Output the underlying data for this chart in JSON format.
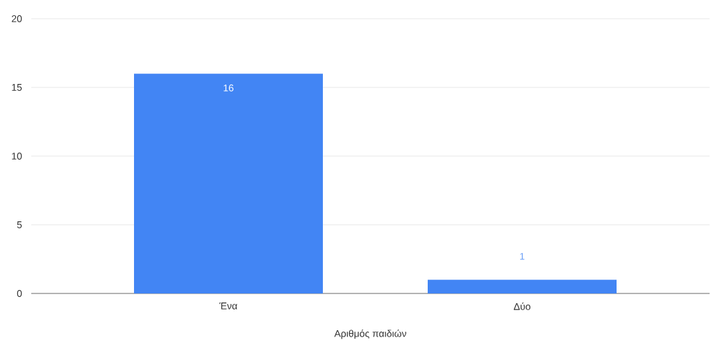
{
  "chart_data": {
    "type": "bar",
    "xlabel": "Αριθμός παιδιών",
    "categories": [
      "Ένα",
      "Δύο"
    ],
    "values": [
      16,
      1
    ],
    "color": "#4285f4",
    "ylim": [
      0,
      20
    ],
    "yticks": [
      0,
      5,
      10,
      15,
      20
    ],
    "grid": "y",
    "data_labels": true
  }
}
